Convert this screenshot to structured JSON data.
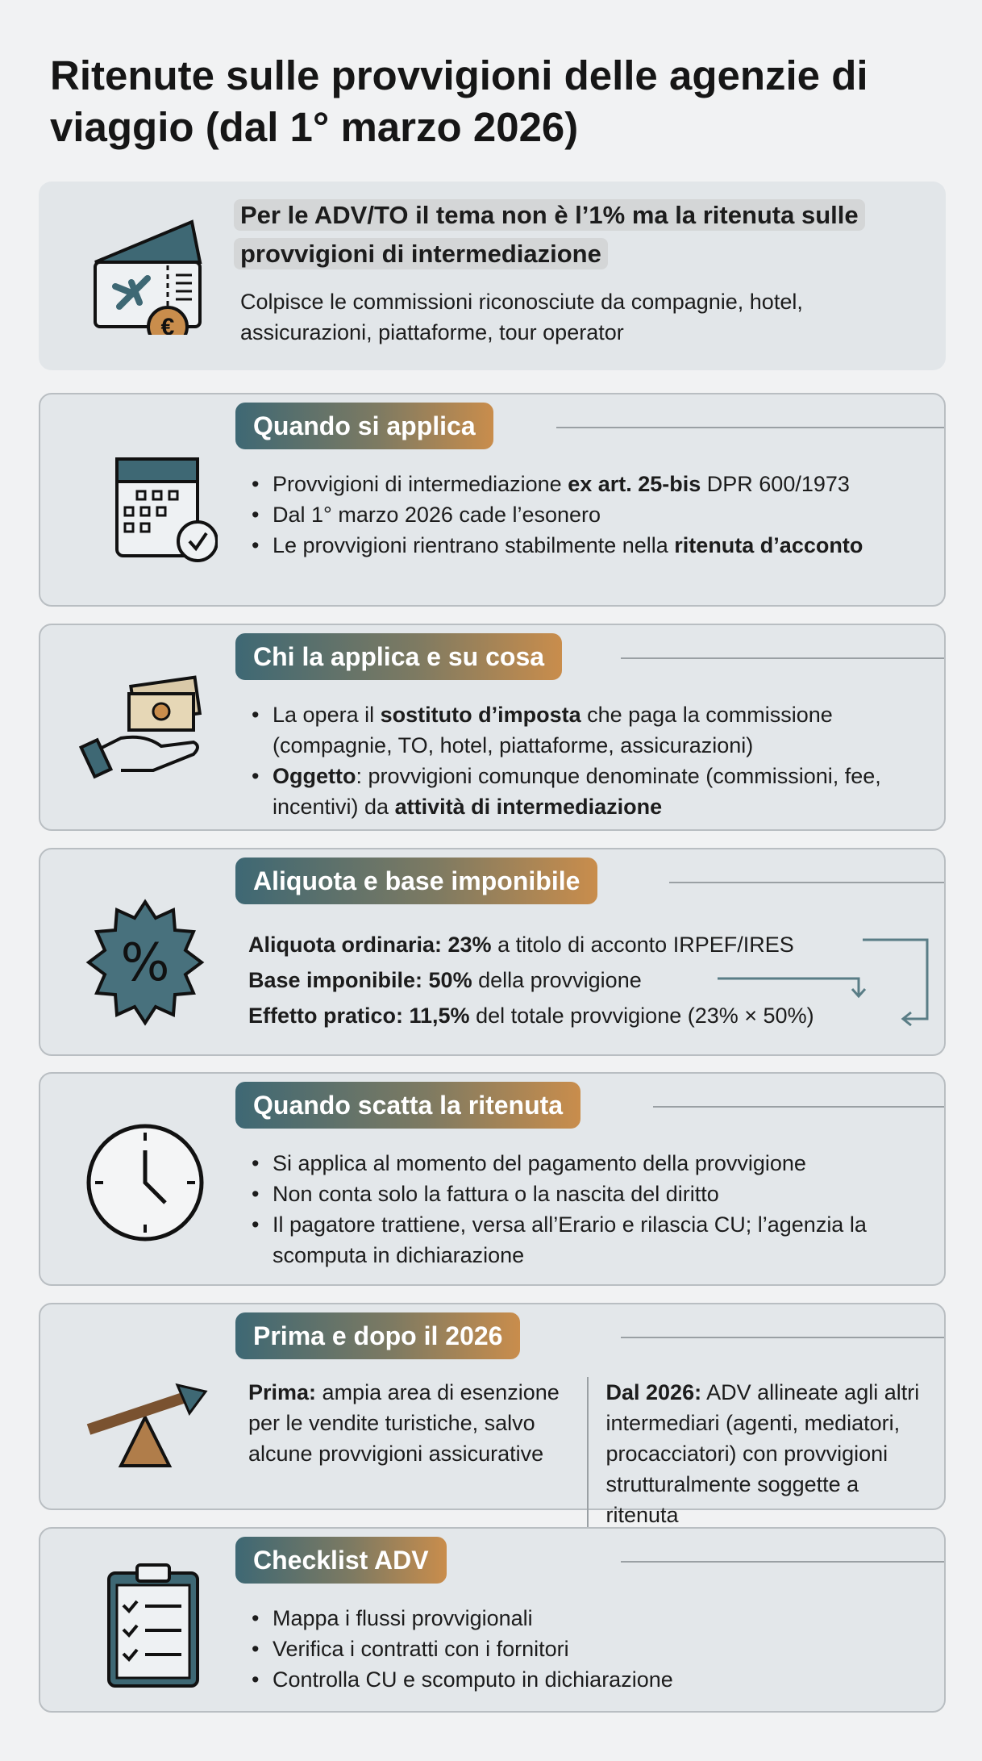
{
  "title": "Ritenute sulle provvigioni delle agenzie di viaggio (dal 1° marzo 2026)",
  "intro": {
    "headline": "Per le ADV/TO il tema non è l’1% ma la ritenuta sulle provvigioni di intermediazione",
    "text": "Colpisce le commissioni riconosciute da compagnie, hotel, assicurazioni, piattaforme, tour operator",
    "icon": "ticket-euro-icon"
  },
  "colors": {
    "teal": "#3e6874",
    "orange": "#c98d4c"
  },
  "sections": [
    {
      "title": "Quando si applica",
      "icon": "calendar-check-icon",
      "items": [
        {
          "pre": "Provvigioni di intermediazione ",
          "bold": "ex art. 25-bis",
          "post": " DPR 600/1973"
        },
        {
          "pre": "Dal 1° marzo 2026 cade l’esonero",
          "bold": "",
          "post": ""
        },
        {
          "pre": "Le provvigioni rientrano stabilmente nella ",
          "bold": "ritenuta d’acconto",
          "post": ""
        }
      ]
    },
    {
      "title": "Chi la applica e su cosa",
      "icon": "hand-money-icon",
      "items": [
        {
          "pre": "La opera il ",
          "bold": "sostituto d’imposta",
          "post": " che paga la commissione (compagnie, TO, hotel, piattaforme, assicurazioni)"
        },
        {
          "pre": "",
          "bold": "Oggetto",
          "post": ": provvigioni comunque denominate (commissioni, fee, incentivi) da ",
          "bold2": "attività di intermediazione"
        }
      ]
    },
    {
      "title": "Aliquota e base imponibile",
      "icon": "percent-badge-icon",
      "lines": [
        {
          "bold": "Aliquota ordinaria: 23%",
          "post": " a titolo di acconto IRPEF/IRES"
        },
        {
          "bold": "Base imponibile: 50%",
          "post": " della provvigione"
        },
        {
          "bold": "Effetto pratico: 11,5%",
          "post": " del totale provvigione (23% × 50%)"
        }
      ]
    },
    {
      "title": "Quando scatta la ritenuta",
      "icon": "clock-icon",
      "items": [
        {
          "pre": "Si applica al momento del pagamento della provvigione",
          "bold": "",
          "post": ""
        },
        {
          "pre": "Non conta solo la fattura o la nascita del diritto",
          "bold": "",
          "post": ""
        },
        {
          "pre": "Il pagatore trattiene, versa all’Erario e rilascia CU; l’agenzia la scomputa in dichiarazione",
          "bold": "",
          "post": ""
        }
      ]
    },
    {
      "title": "Prima e dopo il 2026",
      "icon": "seesaw-arrow-icon",
      "before": {
        "bold": "Prima:",
        "text": " ampia area di esenzione per le vendite turistiche, salvo alcune provvigioni assicurative"
      },
      "after": {
        "bold": "Dal 2026:",
        "text": " ADV allineate agli altri intermediari (agenti, mediatori, procacciatori) con provvigioni strutturalmente soggette a ritenuta"
      }
    },
    {
      "title": "Checklist ADV",
      "icon": "clipboard-checklist-icon",
      "items": [
        {
          "pre": "Mappa i flussi provvigionali",
          "bold": "",
          "post": ""
        },
        {
          "pre": "Verifica i contratti con i fornitori",
          "bold": "",
          "post": ""
        },
        {
          "pre": "Controlla CU e scomputo in dichiarazione",
          "bold": "",
          "post": ""
        }
      ]
    }
  ]
}
